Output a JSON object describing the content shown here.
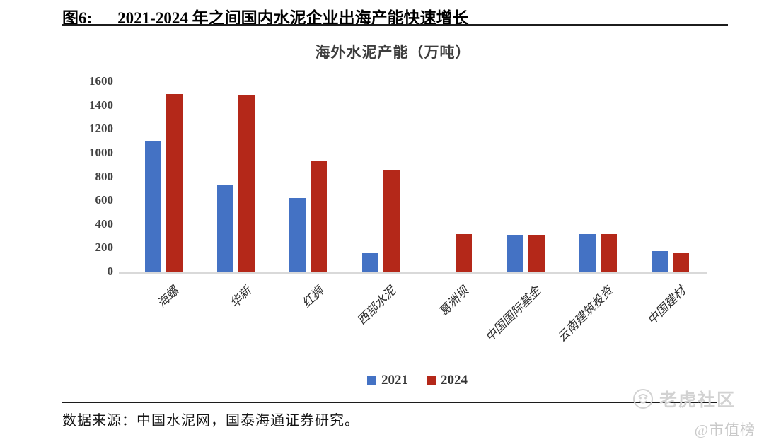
{
  "figure": {
    "label": "图6:",
    "title": "2021-2024 年之间国内水泥企业出海产能快速增长"
  },
  "chart_data": {
    "type": "bar",
    "title": "海外水泥产能（万吨）",
    "categories": [
      "海螺",
      "华新",
      "红狮",
      "西部水泥",
      "葛洲坝",
      "中国国际基金",
      "云南建筑投资",
      "中国建材"
    ],
    "series": [
      {
        "name": "2021",
        "color": "#4472C4",
        "values": [
          1100,
          740,
          625,
          160,
          0,
          310,
          320,
          180
        ]
      },
      {
        "name": "2024",
        "color": "#B42819",
        "values": [
          1500,
          1490,
          940,
          860,
          320,
          310,
          320,
          160
        ]
      }
    ],
    "ylabel": "",
    "xlabel": "",
    "ylim": [
      0,
      1600
    ],
    "yticks": [
      0,
      200,
      400,
      600,
      800,
      1000,
      1200,
      1400,
      1600
    ],
    "grid": false,
    "legend_position": "bottom"
  },
  "source": {
    "text": "数据来源：中国水泥网，国泰海通证券研究。"
  },
  "watermark": {
    "community": "老虎社区",
    "handle": "@市值榜"
  },
  "colors": {
    "bar_2021": "#4472C4",
    "bar_2024": "#B42819",
    "axis_line": "#d9d9d9",
    "rule": "#1c1c1c",
    "watermark": "#d2d2d2"
  }
}
